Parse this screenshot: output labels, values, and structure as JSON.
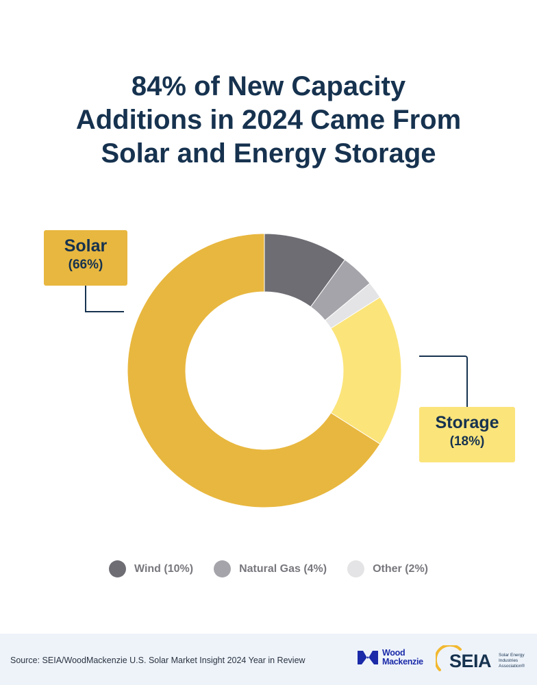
{
  "title_lines": [
    "84% of New Capacity",
    "Additions in 2024 Came From",
    "Solar and Energy Storage"
  ],
  "chart_data": {
    "type": "pie",
    "donut": true,
    "title": "84% of New Capacity Additions in 2024 Came From Solar and Energy Storage",
    "slices": [
      {
        "name": "Wind",
        "value": 10,
        "color": "#6d6d73"
      },
      {
        "name": "Natural Gas",
        "value": 4,
        "color": "#a4a4aa"
      },
      {
        "name": "Other",
        "value": 2,
        "color": "#e4e4e6"
      },
      {
        "name": "Storage",
        "value": 18,
        "color": "#fbe47a"
      },
      {
        "name": "Solar",
        "value": 66,
        "color": "#e8b73f"
      }
    ]
  },
  "callouts": {
    "solar": {
      "name": "Solar",
      "pct": "(66%)"
    },
    "storage": {
      "name": "Storage",
      "pct": "(18%)"
    }
  },
  "legend": [
    {
      "label": "Wind (10%)",
      "color": "#6d6d73"
    },
    {
      "label": "Natural Gas (4%)",
      "color": "#a4a4aa"
    },
    {
      "label": "Other (2%)",
      "color": "#e4e4e6"
    }
  ],
  "footer": {
    "source": "Source: SEIA/WoodMackenzie U.S. Solar Market Insight 2024 Year in Review",
    "wood_mackenzie": [
      "Wood",
      "Mackenzie"
    ],
    "seia": "SEIA",
    "seia_sub": [
      "Solar Energy",
      "Industries",
      "Association®"
    ]
  }
}
